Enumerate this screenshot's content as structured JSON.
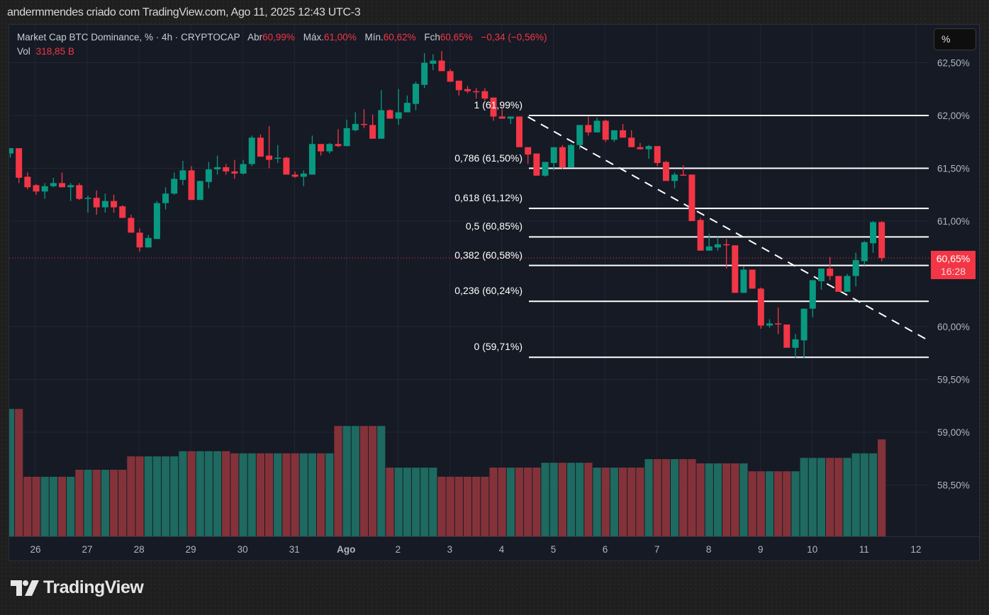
{
  "snapshot_title": "andermmendes criado com TradingView.com, Ago 11, 2025 12:43 UTC-3",
  "legend": {
    "symbol": "Market Cap BTC Dominance, % · 4h · CRYPTOCAP",
    "open_label": "Abr",
    "open": "60,99%",
    "high_label": "Máx.",
    "high": "61,00%",
    "low_label": "Mín.",
    "low": "60,62%",
    "close_label": "Fch",
    "close": "60,65%",
    "change": "−0,34 (−0,56%)",
    "vol_label": "Vol",
    "vol": "318,85 B"
  },
  "scale_button": "%",
  "last_price": {
    "value": "60,65%",
    "countdown": "16:28",
    "price": 60.65
  },
  "brand": "TradingView",
  "colors": {
    "up": "#089981",
    "down": "#f23645",
    "vol_up": "#1e6960",
    "vol_down": "#84323a",
    "background": "#161a25",
    "fib_line": "#ffffff",
    "grid": "#222632"
  },
  "chart_data": {
    "type": "candlestick",
    "interval": "4h",
    "price_ticks": [
      62.5,
      62.0,
      61.5,
      61.0,
      60.0,
      59.5,
      59.0,
      58.5
    ],
    "price_tick_labels": [
      "62,50%",
      "62,00%",
      "61,50%",
      "61,00%",
      "60,00%",
      "59,50%",
      "59,00%",
      "58,50%"
    ],
    "x_tick_labels": [
      "26",
      "27",
      "28",
      "29",
      "30",
      "31",
      "Ago",
      "2",
      "3",
      "4",
      "5",
      "6",
      "7",
      "8",
      "9",
      "10",
      "11",
      "12"
    ],
    "grid": true,
    "ohlc": [
      [
        61.64,
        61.69,
        61.6,
        61.69
      ],
      [
        61.69,
        61.69,
        61.36,
        61.41
      ],
      [
        61.42,
        61.46,
        61.3,
        61.32
      ],
      [
        61.34,
        61.35,
        61.25,
        61.28
      ],
      [
        61.28,
        61.36,
        61.21,
        61.33
      ],
      [
        61.33,
        61.41,
        61.32,
        61.36
      ],
      [
        61.36,
        61.46,
        61.32,
        61.32
      ],
      [
        61.32,
        61.36,
        61.19,
        61.34
      ],
      [
        61.34,
        61.36,
        61.2,
        61.21
      ],
      [
        61.21,
        61.24,
        61.08,
        61.22
      ],
      [
        61.22,
        61.29,
        61.06,
        61.13
      ],
      [
        61.13,
        61.26,
        61.08,
        61.19
      ],
      [
        61.19,
        61.25,
        61.08,
        61.13
      ],
      [
        61.14,
        61.15,
        61.03,
        61.03
      ],
      [
        61.03,
        61.06,
        60.89,
        60.89
      ],
      [
        60.89,
        60.93,
        60.71,
        60.75
      ],
      [
        60.75,
        60.87,
        60.75,
        60.84
      ],
      [
        60.83,
        61.19,
        60.83,
        61.17
      ],
      [
        61.17,
        61.32,
        61.11,
        61.26
      ],
      [
        61.26,
        61.46,
        61.25,
        61.4
      ],
      [
        61.39,
        61.57,
        61.34,
        61.48
      ],
      [
        61.48,
        61.52,
        61.2,
        61.2
      ],
      [
        61.2,
        61.38,
        61.2,
        61.38
      ],
      [
        61.37,
        61.56,
        61.31,
        61.49
      ],
      [
        61.49,
        61.62,
        61.44,
        61.51
      ],
      [
        61.51,
        61.54,
        61.44,
        61.47
      ],
      [
        61.47,
        61.58,
        61.4,
        61.45
      ],
      [
        61.45,
        61.58,
        61.44,
        61.54
      ],
      [
        61.54,
        61.81,
        61.52,
        61.79
      ],
      [
        61.79,
        61.82,
        61.61,
        61.61
      ],
      [
        61.62,
        61.9,
        61.5,
        61.58
      ],
      [
        61.59,
        61.72,
        61.55,
        61.6
      ],
      [
        61.6,
        61.61,
        61.44,
        61.44
      ],
      [
        61.44,
        61.47,
        61.41,
        61.42
      ],
      [
        61.42,
        61.48,
        61.33,
        61.45
      ],
      [
        61.44,
        61.81,
        61.44,
        61.73
      ],
      [
        61.73,
        61.73,
        61.62,
        61.66
      ],
      [
        61.66,
        61.74,
        61.64,
        61.73
      ],
      [
        61.73,
        61.87,
        61.7,
        61.71
      ],
      [
        61.71,
        61.96,
        61.71,
        61.88
      ],
      [
        61.86,
        62.03,
        61.85,
        61.92
      ],
      [
        61.92,
        62.06,
        61.88,
        61.91
      ],
      [
        61.91,
        62.01,
        61.78,
        61.78
      ],
      [
        61.78,
        62.24,
        61.78,
        62.05
      ],
      [
        62.05,
        62.06,
        61.97,
        61.97
      ],
      [
        61.97,
        62.25,
        61.91,
        62.03
      ],
      [
        62.03,
        62.19,
        62.03,
        62.12
      ],
      [
        62.11,
        62.32,
        62.05,
        62.3
      ],
      [
        62.29,
        62.59,
        62.26,
        62.5
      ],
      [
        62.49,
        62.58,
        62.43,
        62.52
      ],
      [
        62.52,
        62.61,
        62.42,
        62.42
      ],
      [
        62.42,
        62.44,
        62.32,
        62.32
      ],
      [
        62.33,
        62.33,
        62.19,
        62.24
      ],
      [
        62.25,
        62.28,
        62.21,
        62.23
      ],
      [
        62.23,
        62.26,
        62.16,
        62.22
      ],
      [
        62.23,
        62.26,
        62.14,
        62.16
      ],
      [
        62.17,
        62.17,
        61.95,
        61.99
      ],
      [
        61.99,
        62.06,
        61.97,
        61.97
      ],
      [
        61.97,
        61.99,
        61.92,
        61.99
      ],
      [
        61.99,
        61.99,
        61.7,
        61.7
      ],
      [
        61.7,
        61.7,
        61.54,
        61.63
      ],
      [
        61.64,
        61.64,
        61.43,
        61.43
      ],
      [
        61.43,
        61.56,
        61.42,
        61.56
      ],
      [
        61.55,
        61.7,
        61.48,
        61.7
      ],
      [
        61.7,
        61.72,
        61.49,
        61.51
      ],
      [
        61.51,
        61.73,
        61.51,
        61.72
      ],
      [
        61.72,
        61.91,
        61.68,
        61.91
      ],
      [
        61.91,
        61.99,
        61.81,
        61.84
      ],
      [
        61.84,
        61.98,
        61.84,
        61.95
      ],
      [
        61.95,
        61.96,
        61.75,
        61.77
      ],
      [
        61.77,
        61.86,
        61.75,
        61.86
      ],
      [
        61.86,
        61.92,
        61.79,
        61.79
      ],
      [
        61.79,
        61.86,
        61.7,
        61.7
      ],
      [
        61.7,
        61.74,
        61.68,
        61.68
      ],
      [
        61.68,
        61.72,
        61.59,
        61.71
      ],
      [
        61.71,
        61.71,
        61.52,
        61.55
      ],
      [
        61.56,
        61.57,
        61.38,
        61.38
      ],
      [
        61.38,
        61.46,
        61.31,
        61.44
      ],
      [
        61.44,
        61.53,
        61.43,
        61.43
      ],
      [
        61.44,
        61.44,
        61.0,
        61.0
      ],
      [
        61.01,
        61.03,
        60.72,
        60.72
      ],
      [
        60.72,
        60.88,
        60.72,
        60.76
      ],
      [
        60.75,
        60.85,
        60.72,
        60.78
      ],
      [
        60.78,
        60.83,
        60.55,
        60.77
      ],
      [
        60.77,
        60.77,
        60.32,
        60.32
      ],
      [
        60.32,
        60.57,
        60.32,
        60.54
      ],
      [
        60.54,
        60.54,
        60.36,
        60.36
      ],
      [
        60.36,
        60.37,
        59.98,
        60.01
      ],
      [
        60.01,
        60.07,
        59.99,
        60.03
      ],
      [
        60.03,
        60.18,
        59.93,
        60.02
      ],
      [
        60.02,
        60.02,
        59.8,
        59.8
      ],
      [
        59.8,
        59.93,
        59.7,
        59.88
      ],
      [
        59.87,
        60.17,
        59.7,
        60.17
      ],
      [
        60.17,
        60.44,
        60.09,
        60.44
      ],
      [
        60.43,
        60.55,
        60.35,
        60.55
      ],
      [
        60.55,
        60.66,
        60.44,
        60.48
      ],
      [
        60.48,
        60.48,
        60.33,
        60.33
      ],
      [
        60.33,
        60.5,
        60.33,
        60.48
      ],
      [
        60.48,
        60.7,
        60.38,
        60.63
      ],
      [
        60.62,
        60.81,
        60.58,
        60.8
      ],
      [
        60.79,
        61.0,
        60.7,
        60.99
      ],
      [
        60.99,
        61.0,
        60.62,
        60.65
      ]
    ],
    "volume_billions": [
      419,
      419,
      196,
      196,
      196,
      196,
      196,
      196,
      219,
      219,
      219,
      219,
      219,
      219,
      263,
      263,
      263,
      263,
      263,
      263,
      280,
      280,
      280,
      280,
      280,
      280,
      273,
      273,
      273,
      273,
      273,
      273,
      273,
      273,
      273,
      273,
      273,
      273,
      363,
      363,
      363,
      363,
      363,
      363,
      226,
      226,
      226,
      226,
      226,
      226,
      196,
      196,
      196,
      196,
      196,
      196,
      226,
      226,
      226,
      226,
      226,
      226,
      242,
      242,
      242,
      242,
      242,
      242,
      226,
      226,
      226,
      226,
      226,
      226,
      254,
      254,
      254,
      254,
      254,
      254,
      240,
      240,
      240,
      240,
      240,
      240,
      214,
      214,
      214,
      214,
      214,
      214,
      258,
      258,
      258,
      258,
      258,
      258,
      273,
      273,
      273,
      318.85
    ],
    "fibonacci": [
      {
        "ratio": 1,
        "price": 61.99,
        "label": "1 (61,99%)"
      },
      {
        "ratio": 0.786,
        "price": 61.5,
        "label": "0,786 (61,50%)"
      },
      {
        "ratio": 0.618,
        "price": 61.12,
        "label": "0,618 (61,12%)"
      },
      {
        "ratio": 0.5,
        "price": 60.85,
        "label": "0,5 (60,85%)"
      },
      {
        "ratio": 0.382,
        "price": 60.58,
        "label": "0,382 (60,58%)"
      },
      {
        "ratio": 0.236,
        "price": 60.24,
        "label": "0,236 (60,24%)"
      },
      {
        "ratio": 0,
        "price": 59.71,
        "label": "0 (59,71%)"
      }
    ],
    "trendline": {
      "style": "dashed",
      "from": {
        "candle": 59,
        "price": 61.99
      },
      "to": {
        "candle": 106.4,
        "price": 59.87
      }
    }
  }
}
